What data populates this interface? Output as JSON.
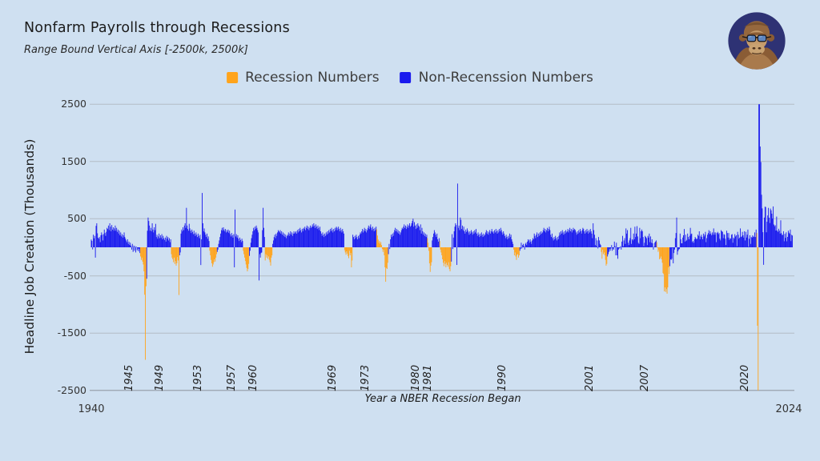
{
  "header": {
    "title": "Nonfarm Payrolls through Recessions",
    "subtitle": "Range Bound Vertical Axis [-2500k, 2500k]"
  },
  "legend": [
    {
      "label": "Recession Numbers",
      "color": "#FFA41C"
    },
    {
      "label": "Non-Recenssion Numbers",
      "color": "#1A1AEE"
    }
  ],
  "y_axis": {
    "label": "Headline Job Creation (Thousands)",
    "ticks": [
      2500,
      1500,
      500,
      -500,
      -1500,
      -2500
    ]
  },
  "x_axis": {
    "label": "Year a NBER Recession Began",
    "start_label": "1940",
    "end_label": "2024"
  },
  "avatar": {
    "name": "gorilla-with-sunglasses",
    "background": "#2E3274"
  },
  "chart_data": {
    "type": "bar",
    "title": "Nonfarm Payrolls through Recessions",
    "ylabel": "Headline Job Creation (Thousands)",
    "xlabel": "Year a NBER Recession Began",
    "ylim": [
      -2500,
      2500
    ],
    "clip": [
      -2500,
      2500
    ],
    "frequency": "monthly",
    "start_month": "1939-02",
    "end_month": "2024-06",
    "grid": "horizontal",
    "colors": {
      "recession": "#FFA41C",
      "non_recession": "#1A1AEE",
      "gridline": "#B4BCC6",
      "axis_line": "#9AA2AC",
      "background": "#CFE0F1"
    },
    "values_by_year": {
      "1939": [
        136,
        112,
        -37,
        220,
        157,
        200,
        -180,
        375,
        420,
        245,
        168
      ],
      "1940": [
        150,
        180,
        90,
        210,
        260,
        220,
        120,
        230,
        310,
        250,
        200,
        270
      ],
      "1941": [
        340,
        320,
        380,
        300,
        420,
        360,
        280,
        390,
        310,
        350,
        290,
        330
      ],
      "1942": [
        380,
        290,
        340,
        270,
        310,
        240,
        290,
        210,
        260,
        190,
        230,
        170
      ],
      "1943": [
        210,
        260,
        180,
        150,
        120,
        90,
        140,
        60,
        100,
        40,
        80,
        30
      ],
      "1944": [
        -40,
        60,
        -80,
        30,
        -60,
        20,
        -90,
        10,
        -50,
        -20,
        -70,
        -30
      ],
      "1945": [
        -100,
        -160,
        -220,
        -180,
        -250,
        -300,
        -420,
        -828,
        -1966,
        -680,
        -549,
        290
      ],
      "1946": [
        520,
        460,
        380,
        290,
        340,
        280,
        420,
        310,
        260,
        350,
        300,
        410
      ],
      "1947": [
        180,
        220,
        150,
        190,
        240,
        160,
        210,
        170,
        230,
        140,
        200,
        160
      ],
      "1948": [
        130,
        170,
        100,
        200,
        150,
        180,
        120,
        160,
        90,
        140,
        -120,
        -180
      ],
      "1949": [
        -210,
        -260,
        -180,
        -290,
        -240,
        -320,
        -280,
        -170,
        -230,
        -834,
        -140,
        -90
      ],
      "1950": [
        240,
        310,
        280,
        350,
        300,
        380,
        420,
        340,
        690,
        380,
        320,
        290
      ],
      "1951": [
        410,
        330,
        290,
        250,
        310,
        270,
        230,
        290,
        240,
        200,
        260,
        220
      ],
      "1952": [
        180,
        240,
        200,
        160,
        220,
        -310,
        140,
        950,
        420,
        280,
        330,
        260
      ],
      "1953": [
        220,
        180,
        240,
        150,
        190,
        110,
        -60,
        -140,
        -220,
        -280,
        -340,
        -300
      ],
      "1954": [
        -260,
        -210,
        -250,
        -180,
        -120,
        -80,
        -40,
        60,
        120,
        180,
        240,
        300
      ],
      "1955": [
        340,
        290,
        350,
        310,
        280,
        320,
        260,
        300,
        270,
        310,
        250,
        290
      ],
      "1956": [
        230,
        190,
        250,
        210,
        170,
        230,
        -350,
        660,
        190,
        230,
        170,
        210
      ],
      "1957": [
        150,
        110,
        170,
        130,
        90,
        150,
        110,
        -60,
        -120,
        -180,
        -240,
        -300
      ],
      "1958": [
        -360,
        -420,
        -380,
        -290,
        -150,
        -60,
        80,
        160,
        220,
        280,
        340,
        300
      ],
      "1959": [
        360,
        320,
        380,
        340,
        300,
        260,
        -579,
        -120,
        -180,
        -100,
        -90,
        300
      ],
      "1960": [
        690,
        340,
        180,
        -230,
        -120,
        -180,
        -140,
        -200,
        -160,
        -220,
        -260,
        -320
      ],
      "1961": [
        -180,
        -140,
        60,
        120,
        180,
        220,
        160,
        240,
        200,
        260,
        300,
        280
      ],
      "1962": [
        260,
        300,
        240,
        280,
        220,
        260,
        200,
        240,
        180,
        220,
        160,
        200
      ],
      "1963": [
        220,
        260,
        200,
        240,
        280,
        220,
        260,
        200,
        240,
        280,
        240,
        260
      ],
      "1964": [
        280,
        240,
        300,
        260,
        320,
        280,
        340,
        300,
        260,
        320,
        280,
        340
      ],
      "1965": [
        320,
        360,
        300,
        340,
        380,
        320,
        360,
        300,
        340,
        380,
        340,
        360
      ],
      "1966": [
        400,
        360,
        420,
        380,
        340,
        400,
        360,
        320,
        380,
        340,
        300,
        360
      ],
      "1967": [
        280,
        240,
        200,
        260,
        220,
        180,
        240,
        200,
        260,
        220,
        280,
        240
      ],
      "1968": [
        300,
        260,
        320,
        280,
        340,
        300,
        260,
        320,
        280,
        340,
        300,
        360
      ],
      "1969": [
        340,
        300,
        360,
        320,
        280,
        340,
        300,
        260,
        320,
        280,
        240,
        -50
      ],
      "1970": [
        -90,
        -130,
        -70,
        -110,
        -150,
        -190,
        -60,
        -140,
        -100,
        -350,
        -230,
        220
      ],
      "1971": [
        180,
        140,
        200,
        160,
        220,
        180,
        140,
        200,
        160,
        220,
        260,
        240
      ],
      "1972": [
        280,
        320,
        260,
        300,
        340,
        280,
        320,
        260,
        300,
        340,
        380,
        320
      ],
      "1973": [
        360,
        400,
        340,
        300,
        360,
        320,
        280,
        340,
        300,
        360,
        313,
        206
      ],
      "1974": [
        135,
        80,
        110,
        60,
        90,
        40,
        -30,
        -80,
        -40,
        -140,
        -349,
        -602
      ],
      "1975": [
        -360,
        -378,
        -270,
        -120,
        60,
        -30,
        140,
        220,
        180,
        240,
        200,
        260
      ],
      "1976": [
        300,
        340,
        280,
        320,
        260,
        300,
        240,
        280,
        220,
        260,
        300,
        340
      ],
      "1977": [
        320,
        360,
        400,
        340,
        380,
        320,
        360,
        400,
        340,
        380,
        420,
        360
      ],
      "1978": [
        380,
        420,
        460,
        500,
        360,
        440,
        380,
        320,
        400,
        340,
        420,
        380
      ],
      "1979": [
        360,
        300,
        400,
        240,
        340,
        280,
        220,
        260,
        200,
        240,
        180,
        220
      ],
      "1980": [
        160,
        80,
        -60,
        -280,
        -430,
        -320,
        -260,
        120,
        180,
        240,
        300,
        260
      ],
      "1981": [
        220,
        180,
        240,
        140,
        100,
        160,
        110,
        -40,
        -90,
        -140,
        -210,
        -270
      ],
      "1982": [
        -330,
        -240,
        -290,
        -350,
        -270,
        -310,
        -340,
        -260,
        -380,
        -420,
        -330,
        -250
      ],
      "1983": [
        230,
        -30,
        170,
        280,
        360,
        420,
        390,
        -308,
        1114,
        340,
        380,
        300
      ],
      "1984": [
        520,
        480,
        320,
        380,
        300,
        360,
        280,
        240,
        310,
        270,
        330,
        290
      ],
      "1985": [
        260,
        220,
        280,
        240,
        300,
        260,
        220,
        280,
        240,
        300,
        260,
        320
      ],
      "1986": [
        240,
        200,
        260,
        220,
        180,
        240,
        200,
        260,
        220,
        180,
        240,
        200
      ],
      "1987": [
        220,
        260,
        300,
        240,
        280,
        220,
        260,
        300,
        240,
        280,
        320,
        260
      ],
      "1988": [
        280,
        240,
        300,
        260,
        320,
        280,
        240,
        300,
        260,
        320,
        280,
        340
      ],
      "1989": [
        300,
        260,
        220,
        280,
        240,
        200,
        160,
        220,
        180,
        140,
        200,
        160
      ],
      "1990": [
        240,
        180,
        220,
        140,
        100,
        60,
        -40,
        -140,
        -90,
        -160,
        -220,
        -130
      ],
      "1991": [
        -120,
        -180,
        -140,
        -60,
        -30,
        80,
        -20,
        40,
        60,
        20,
        -40,
        60
      ],
      "1992": [
        80,
        40,
        100,
        140,
        120,
        80,
        140,
        100,
        60,
        120,
        160,
        140
      ],
      "1993": [
        240,
        200,
        160,
        220,
        260,
        180,
        240,
        200,
        260,
        220,
        280,
        240
      ],
      "1994": [
        260,
        300,
        340,
        280,
        320,
        260,
        300,
        340,
        280,
        320,
        360,
        300
      ],
      "1995": [
        220,
        180,
        240,
        160,
        120,
        180,
        140,
        200,
        160,
        120,
        180,
        140
      ],
      "1996": [
        200,
        260,
        220,
        280,
        240,
        300,
        260,
        220,
        280,
        240,
        300,
        260
      ],
      "1997": [
        280,
        320,
        260,
        300,
        340,
        280,
        320,
        260,
        300,
        340,
        300,
        320
      ],
      "1998": [
        300,
        260,
        220,
        280,
        240,
        300,
        260,
        320,
        280,
        240,
        300,
        340
      ],
      "1999": [
        320,
        280,
        240,
        300,
        260,
        320,
        280,
        240,
        300,
        260,
        320,
        280
      ],
      "2000": [
        240,
        160,
        420,
        300,
        220,
        40,
        160,
        20,
        120,
        -20,
        180,
        120
      ],
      "2001": [
        60,
        40,
        -80,
        -200,
        -40,
        -120,
        -90,
        -140,
        -220,
        -320,
        -290,
        -160
      ],
      "2002": [
        -120,
        -80,
        -30,
        -60,
        -20,
        40,
        -60,
        -20,
        -40,
        100,
        20,
        -140
      ],
      "2003": [
        80,
        -140,
        -200,
        -40,
        -20,
        -10,
        20,
        -40,
        100,
        200,
        20,
        120
      ],
      "2004": [
        160,
        60,
        330,
        240,
        300,
        80,
        40,
        120,
        160,
        340,
        60,
        140
      ],
      "2005": [
        120,
        240,
        140,
        360,
        180,
        240,
        370,
        190,
        80,
        60,
        340,
        160
      ],
      "2006": [
        280,
        310,
        280,
        180,
        20,
        80,
        200,
        180,
        160,
        40,
        200,
        170
      ],
      "2007": [
        240,
        90,
        190,
        80,
        140,
        70,
        -40,
        10,
        80,
        100,
        120,
        90
      ],
      "2008": [
        -10,
        -80,
        -50,
        -210,
        -190,
        -160,
        -210,
        -270,
        -450,
        -470,
        -770,
        -700
      ],
      "2009": [
        -780,
        -730,
        -810,
        -700,
        -350,
        -470,
        -330,
        -210,
        -220,
        -200,
        -10,
        -280
      ],
      "2010": [
        -100,
        -40,
        160,
        250,
        520,
        -130,
        -70,
        -40,
        -30,
        240,
        140,
        70
      ],
      "2011": [
        70,
        170,
        210,
        320,
        100,
        220,
        110,
        130,
        240,
        180,
        140,
        200
      ],
      "2012": [
        340,
        230,
        240,
        90,
        110,
        80,
        140,
        180,
        160,
        140,
        150,
        220
      ],
      "2013": [
        200,
        280,
        140,
        190,
        220,
        180,
        140,
        240,
        190,
        220,
        270,
        90
      ],
      "2014": [
        160,
        220,
        250,
        300,
        230,
        280,
        240,
        210,
        260,
        220,
        330,
        260
      ],
      "2015": [
        220,
        260,
        90,
        250,
        270,
        230,
        250,
        150,
        120,
        300,
        280,
        270
      ],
      "2016": [
        160,
        230,
        220,
        150,
        40,
        290,
        250,
        170,
        250,
        130,
        160,
        150
      ],
      "2017": [
        220,
        230,
        80,
        170,
        150,
        230,
        190,
        210,
        20,
        270,
        220,
        150
      ],
      "2018": [
        170,
        330,
        180,
        190,
        270,
        210,
        170,
        280,
        120,
        270,
        170,
        220
      ],
      "2019": [
        310,
        10,
        150,
        210,
        60,
        180,
        170,
        210,
        190,
        180,
        260,
        180
      ],
      "2020": [
        310,
        250,
        -1370,
        -2500,
        2500,
        2500,
        1761,
        1490,
        919,
        680,
        264,
        -306
      ],
      "2021": [
        520,
        710,
        704,
        263,
        447,
        557,
        689,
        517,
        424,
        677,
        647,
        588
      ],
      "2022": [
        504,
        714,
        398,
        368,
        386,
        293,
        537,
        292,
        269,
        324,
        290,
        239
      ],
      "2023": [
        472,
        248,
        217,
        217,
        281,
        105,
        236,
        165,
        262,
        105,
        182,
        290
      ],
      "2024": [
        256,
        236,
        310,
        108,
        218,
        206
      ]
    },
    "recessions": [
      {
        "label": "1945",
        "start": 72,
        "end": 80
      },
      {
        "label": "1949",
        "start": 117,
        "end": 128
      },
      {
        "label": "1953",
        "start": 173,
        "end": 183
      },
      {
        "label": "1957",
        "start": 222,
        "end": 230
      },
      {
        "label": "1960",
        "start": 254,
        "end": 264
      },
      {
        "label": "1969",
        "start": 370,
        "end": 381
      },
      {
        "label": "1973",
        "start": 417,
        "end": 433
      },
      {
        "label": "1980",
        "start": 491,
        "end": 497
      },
      {
        "label": "1981",
        "start": 509,
        "end": 525
      },
      {
        "label": "1990",
        "start": 617,
        "end": 625
      },
      {
        "label": "2001",
        "start": 745,
        "end": 753
      },
      {
        "label": "2007",
        "start": 826,
        "end": 844
      },
      {
        "label": "2020",
        "start": 972,
        "end": 974
      }
    ]
  }
}
